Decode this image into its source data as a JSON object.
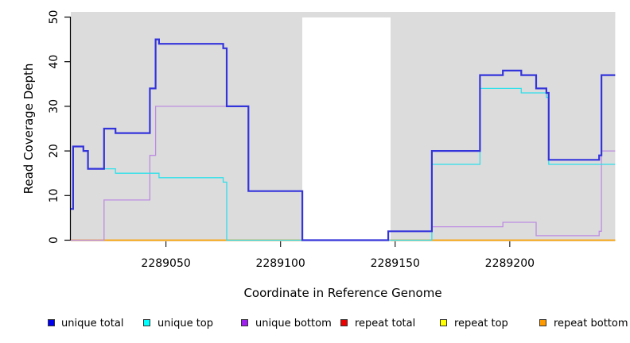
{
  "chart_data": {
    "type": "line",
    "title": "",
    "xlabel": "Coordinate in Reference Genome",
    "ylabel": "Read Coverage Depth",
    "xlim": [
      2289008.5,
      2289246
    ],
    "ylim": [
      0,
      50
    ],
    "x_ticks": [
      2289050,
      2289100,
      2289150,
      2289200
    ],
    "y_ticks": [
      0,
      10,
      20,
      30,
      40,
      50
    ],
    "step_style": "after",
    "grid": false,
    "panel_background": "#dcdcdc",
    "background_bands": [
      {
        "name": "left-unique-region",
        "x0": 2289008.5,
        "x1": 2289109.5
      },
      {
        "name": "right-unique-region",
        "x0": 2289148,
        "x1": 2289246
      }
    ],
    "gap_region": {
      "x0": 2289109.5,
      "x1": 2289148,
      "color": "#ffffff"
    },
    "series": [
      {
        "name": "repeat total",
        "color": "#e00000",
        "width": 1.3,
        "points": [
          [
            2289008.5,
            0
          ]
        ],
        "xend": 2289246
      },
      {
        "name": "repeat top",
        "color": "#f5e800",
        "width": 1.3,
        "points": [
          [
            2289008.5,
            0
          ]
        ],
        "xend": 2289246
      },
      {
        "name": "repeat bottom",
        "color": "#ffa500",
        "width": 1.6,
        "points": [
          [
            2289008.5,
            0
          ]
        ],
        "xend": 2289246
      },
      {
        "name": "unique bottom",
        "color": "#bd8ce2",
        "width": 1.3,
        "points": [
          [
            2289008.5,
            0
          ],
          [
            2289023,
            9
          ],
          [
            2289043,
            19
          ],
          [
            2289045.5,
            30
          ],
          [
            2289086,
            11
          ],
          [
            2289109.5,
            0
          ],
          [
            2289147,
            2
          ],
          [
            2289166,
            3
          ],
          [
            2289197,
            4
          ],
          [
            2289211.5,
            1
          ],
          [
            2289239,
            2
          ],
          [
            2289240,
            20
          ]
        ],
        "xend": 2289246
      },
      {
        "name": "unique top",
        "color": "#2fe0ea",
        "width": 1.3,
        "points": [
          [
            2289008.5,
            7
          ],
          [
            2289009.5,
            21
          ],
          [
            2289014,
            20
          ],
          [
            2289016,
            16
          ],
          [
            2289028,
            15
          ],
          [
            2289047,
            14
          ],
          [
            2289075,
            13
          ],
          [
            2289076.5,
            0
          ],
          [
            2289166,
            17
          ],
          [
            2289187,
            34
          ],
          [
            2289205,
            33
          ],
          [
            2289216,
            32
          ],
          [
            2289217,
            17
          ]
        ],
        "xend": 2289246
      },
      {
        "name": "unique total",
        "color": "#3434db",
        "width": 2.2,
        "points": [
          [
            2289008.5,
            7
          ],
          [
            2289009.5,
            21
          ],
          [
            2289014,
            20
          ],
          [
            2289016,
            16
          ],
          [
            2289023,
            25
          ],
          [
            2289028,
            24
          ],
          [
            2289043,
            34
          ],
          [
            2289045.5,
            45
          ],
          [
            2289047,
            44
          ],
          [
            2289075,
            43
          ],
          [
            2289076.5,
            30
          ],
          [
            2289086,
            11
          ],
          [
            2289109.5,
            0
          ],
          [
            2289147,
            2
          ],
          [
            2289166,
            20
          ],
          [
            2289187,
            37
          ],
          [
            2289197,
            38
          ],
          [
            2289205,
            37
          ],
          [
            2289211.5,
            34
          ],
          [
            2289216,
            33
          ],
          [
            2289217,
            18
          ],
          [
            2289239,
            19
          ],
          [
            2289240,
            37
          ]
        ],
        "xend": 2289246
      }
    ]
  },
  "legend": {
    "items": [
      {
        "label": "unique total",
        "fill": "#0000ee"
      },
      {
        "label": "unique top",
        "fill": "#00ffff"
      },
      {
        "label": "unique bottom",
        "fill": "#a020f0"
      },
      {
        "label": "repeat total",
        "fill": "#ee0000"
      },
      {
        "label": "repeat top",
        "fill": "#ffff00"
      },
      {
        "label": "repeat bottom",
        "fill": "#ff9a00"
      }
    ]
  }
}
